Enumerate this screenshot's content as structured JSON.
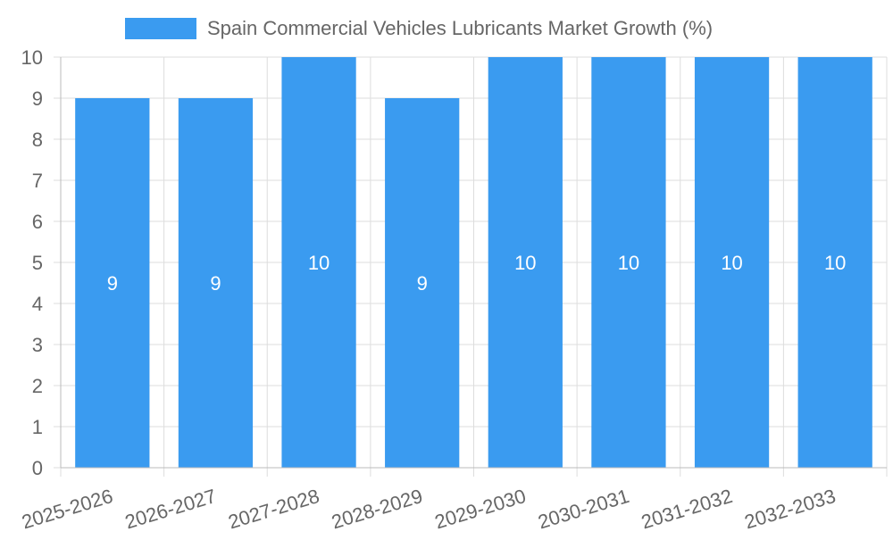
{
  "colors": {
    "bar": "#3a9bf0",
    "grid": "#dddddd",
    "axis_text": "#666666",
    "label_text": "#ffffff"
  },
  "chart_data": {
    "type": "bar",
    "legend_position": "top",
    "grid": true,
    "categories": [
      "2025-2026",
      "2026-2027",
      "2027-2028",
      "2028-2029",
      "2029-2030",
      "2030-2031",
      "2031-2032",
      "2032-2033"
    ],
    "series": [
      {
        "name": "Spain Commercial Vehicles Lubricants Market Growth (%)",
        "values": [
          9,
          9,
          10,
          9,
          10,
          10,
          10,
          10
        ]
      }
    ],
    "data_labels": [
      "9",
      "9",
      "10",
      "9",
      "10",
      "10",
      "10",
      "10"
    ],
    "yticks": [
      "0",
      "1",
      "2",
      "3",
      "4",
      "5",
      "6",
      "7",
      "8",
      "9",
      "10"
    ],
    "ylim": [
      0,
      10
    ],
    "xlabel": "",
    "ylabel": ""
  }
}
